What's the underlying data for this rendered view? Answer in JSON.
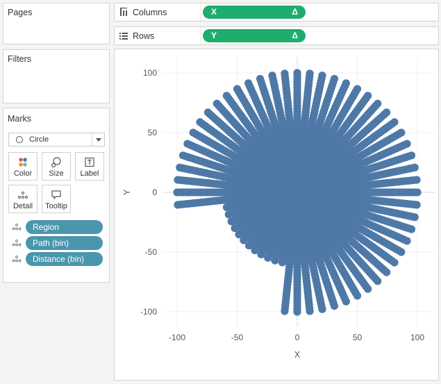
{
  "sidebar": {
    "pages_title": "Pages",
    "filters_title": "Filters",
    "marks_title": "Marks",
    "mark_type": "Circle",
    "mark_buttons": [
      {
        "label": "Color",
        "icon": "color-icon"
      },
      {
        "label": "Size",
        "icon": "size-icon"
      },
      {
        "label": "Label",
        "icon": "label-icon"
      },
      {
        "label": "Detail",
        "icon": "detail-icon"
      },
      {
        "label": "Tooltip",
        "icon": "tooltip-icon"
      }
    ],
    "detail_fields": [
      "Region",
      "Path (bin)",
      "Distance (bin)"
    ],
    "detail_pill_color": "#4a97ad"
  },
  "shelves": {
    "columns_label": "Columns",
    "rows_label": "Rows",
    "columns_pill": {
      "name": "X",
      "delta": "Δ"
    },
    "rows_pill": {
      "name": "Y",
      "delta": "Δ"
    },
    "pill_color": "#1fad6e"
  },
  "chart_data": {
    "type": "scatter",
    "xlabel": "X",
    "ylabel": "Y",
    "xlim": [
      -110,
      110
    ],
    "ylim": [
      -105,
      105
    ],
    "x_ticks": [
      -100,
      -50,
      0,
      50,
      100
    ],
    "y_ticks": [
      100,
      50,
      0,
      -50,
      -100
    ],
    "x_tick_labels": [
      "-100",
      "-50",
      "0",
      "50",
      "100"
    ],
    "y_tick_labels": [
      "100",
      "50",
      "0",
      "-50",
      "-100"
    ],
    "grid": true,
    "mark_color": "#4e79a7",
    "mark_shape": "circle",
    "series": [
      {
        "pattern": "radial spokes from origin, distance 0 to 100 in steps",
        "spoke_count": 60,
        "radius_min": 0,
        "radius_max": 100,
        "empty_sector_deg": [
          186,
          264
        ]
      }
    ]
  }
}
